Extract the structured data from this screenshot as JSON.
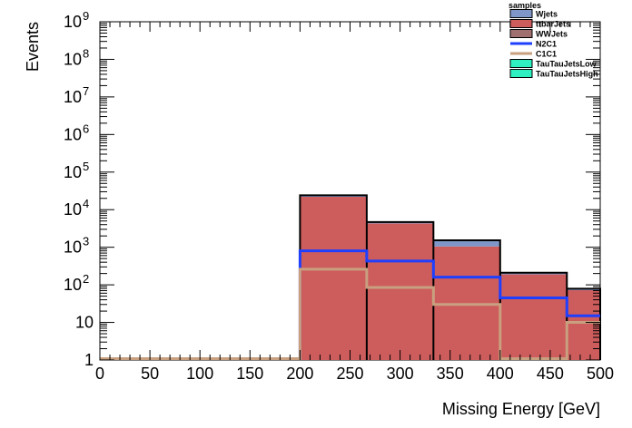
{
  "chart_data": {
    "type": "histogram",
    "xlabel": "Missing Energy [GeV]",
    "ylabel": "Events",
    "xlim": [
      0,
      500
    ],
    "ylim": [
      1,
      1000000000
    ],
    "yscale": "log",
    "x_ticks": [
      "0",
      "50",
      "100",
      "150",
      "200",
      "250",
      "300",
      "350",
      "400",
      "450",
      "500"
    ],
    "x_tick_values": [
      0,
      50,
      100,
      150,
      200,
      250,
      300,
      350,
      400,
      450,
      500
    ],
    "y_ticks": [
      {
        "value": 1,
        "base": "1",
        "exp": ""
      },
      {
        "value": 10,
        "base": "10",
        "exp": ""
      },
      {
        "value": 100,
        "base": "10",
        "exp": "2"
      },
      {
        "value": 1000,
        "base": "10",
        "exp": "3"
      },
      {
        "value": 10000,
        "base": "10",
        "exp": "4"
      },
      {
        "value": 100000,
        "base": "10",
        "exp": "5"
      },
      {
        "value": 1000000,
        "base": "10",
        "exp": "6"
      },
      {
        "value": 10000000,
        "base": "10",
        "exp": "7"
      },
      {
        "value": 100000000,
        "base": "10",
        "exp": "8"
      },
      {
        "value": 1000000000,
        "base": "10",
        "exp": "9"
      }
    ],
    "bin_edges": [
      0,
      66.67,
      133.33,
      200,
      266.67,
      333.33,
      400,
      466.67,
      500
    ],
    "legend_title": "samples",
    "stacked_series": [
      {
        "name": "ttbarJets",
        "color": "#cd5c5c",
        "values": [
          0,
          0,
          0,
          22000,
          4300,
          1050,
          190,
          72
        ]
      },
      {
        "name": "Wjets",
        "color": "#7f96c8",
        "values": [
          0,
          0,
          0,
          2000,
          350,
          450,
          15,
          5
        ]
      },
      {
        "name": "WWJets",
        "color": "#a07070",
        "values": [
          0,
          0,
          0,
          200,
          40,
          30,
          5,
          2
        ]
      }
    ],
    "line_series": [
      {
        "name": "N2C1",
        "color": "#1f3fff",
        "values": [
          1,
          1,
          1,
          800,
          430,
          160,
          45,
          15
        ]
      },
      {
        "name": "C1C1",
        "color": "#c8a07f",
        "values": [
          1,
          1,
          1,
          260,
          85,
          30,
          1,
          10
        ]
      }
    ],
    "empty_series": [
      {
        "name": "TauTauJetsLow",
        "color": "#2ff0c0"
      },
      {
        "name": "TauTauJetsHigh",
        "color": "#2ff0c0"
      }
    ],
    "legend": [
      "Wjets",
      "ttbarJets",
      "WWJets",
      "N2C1",
      "C1C1",
      "TauTauJetsLow",
      "TauTauJetsHigh"
    ],
    "legend_placement": "top-right"
  }
}
